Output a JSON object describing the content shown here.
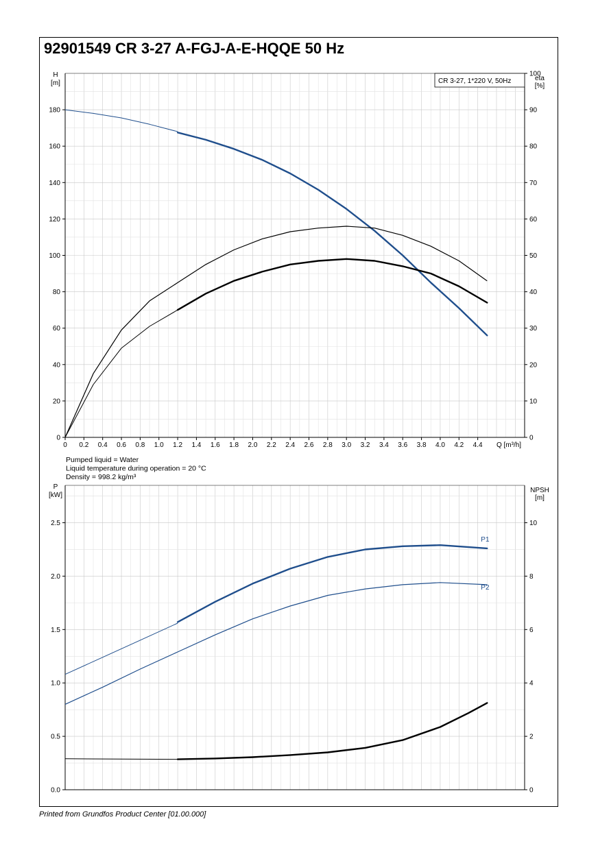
{
  "page": {
    "title": "92901549 CR 3-27 A-FGJ-A-E-HQQE 50 Hz",
    "footer": "Printed from Grundfos Product Center [01.00.000]"
  },
  "colors": {
    "blue": "#1f4e8c",
    "black": "#000000",
    "grid": "#c8c8c8"
  },
  "chart_data": [
    {
      "type": "line",
      "legend_box": "CR 3-27, 1*220 V, 50Hz",
      "xlabel": "Q [m³/h]",
      "ylabel_left": "H",
      "ylabel_left_unit": "[m]",
      "ylabel_right": "eta",
      "ylabel_right_unit": "[%]",
      "x_ticks": [
        "0",
        "0.2",
        "0.4",
        "0.6",
        "0.8",
        "1.0",
        "1.2",
        "1.4",
        "1.6",
        "1.8",
        "2.0",
        "2.2",
        "2.4",
        "2.6",
        "2.8",
        "3.0",
        "3.2",
        "3.4",
        "3.6",
        "3.8",
        "4.0",
        "4.2",
        "4.4"
      ],
      "y_left_ticks": [
        "0",
        "20",
        "40",
        "60",
        "80",
        "100",
        "120",
        "140",
        "160",
        "180"
      ],
      "y_right_ticks": [
        "0",
        "10",
        "20",
        "30",
        "40",
        "50",
        "60",
        "70",
        "80",
        "90",
        "100"
      ],
      "xlim": [
        0,
        4.9
      ],
      "ylim_left": [
        0,
        200
      ],
      "ylim_right": [
        0,
        100
      ],
      "grid": true,
      "series": [
        {
          "id": "H",
          "axis": "left",
          "color": "#1f4e8c",
          "thin_x": [
            0,
            0.3,
            0.6,
            0.9,
            1.2
          ],
          "thin_y": [
            180,
            178,
            175.5,
            172,
            168
          ],
          "bold_x": [
            1.2,
            1.5,
            1.8,
            2.1,
            2.4,
            2.7,
            3.0,
            3.3,
            3.6,
            3.9,
            4.2,
            4.5
          ],
          "bold_y": [
            167.5,
            163.5,
            158.5,
            152.5,
            145,
            136,
            125.5,
            113.5,
            100,
            85,
            71,
            56
          ]
        },
        {
          "id": "eta_motor",
          "axis": "right",
          "color": "#000000",
          "x": [
            0,
            0.3,
            0.6,
            0.9,
            1.2,
            1.5,
            1.8,
            2.1,
            2.4,
            2.7,
            3.0,
            3.3,
            3.6,
            3.9,
            4.2,
            4.5
          ],
          "y": [
            0,
            17.5,
            29.5,
            37.5,
            42.5,
            47.5,
            51.5,
            54.5,
            56.5,
            57.5,
            58,
            57.5,
            55.5,
            52.5,
            48.5,
            43
          ]
        },
        {
          "id": "eta_pump",
          "axis": "right",
          "color": "#000000",
          "thin_x": [
            0,
            0.3,
            0.6,
            0.9,
            1.2
          ],
          "thin_y": [
            0,
            14.5,
            24.5,
            30.5,
            35
          ],
          "bold_x": [
            1.2,
            1.5,
            1.8,
            2.1,
            2.4,
            2.7,
            3.0,
            3.3,
            3.6,
            3.9,
            4.2,
            4.5
          ],
          "bold_y": [
            35,
            39.5,
            43,
            45.5,
            47.5,
            48.5,
            49,
            48.5,
            47,
            45,
            41.5,
            37
          ]
        }
      ],
      "notes": [
        "Pumped liquid = Water",
        "Liquid temperature during operation = 20 °C",
        "Density = 998.2 kg/m³"
      ]
    },
    {
      "type": "line",
      "ylabel_left": "P",
      "ylabel_left_unit": "[kW]",
      "ylabel_right": "NPSH",
      "ylabel_right_unit": "[m]",
      "y_left_ticks": [
        "0.0",
        "0.5",
        "1.0",
        "1.5",
        "2.0",
        "2.5"
      ],
      "y_right_ticks": [
        "0",
        "2",
        "4",
        "6",
        "8",
        "10"
      ],
      "xlim": [
        0,
        4.9
      ],
      "ylim_left": [
        0,
        2.85
      ],
      "ylim_right": [
        0,
        11.4
      ],
      "grid": true,
      "series": [
        {
          "name": "P1",
          "axis": "left",
          "color": "#1f4e8c",
          "thin_x": [
            0,
            0.4,
            0.8,
            1.2
          ],
          "thin_y": [
            1.08,
            1.24,
            1.4,
            1.56
          ],
          "bold_x": [
            1.2,
            1.6,
            2.0,
            2.4,
            2.8,
            3.2,
            3.6,
            4.0,
            4.5
          ],
          "bold_y": [
            1.57,
            1.76,
            1.93,
            2.07,
            2.18,
            2.25,
            2.28,
            2.29,
            2.26
          ]
        },
        {
          "name": "P2",
          "axis": "left",
          "color": "#1f4e8c",
          "x": [
            0,
            0.4,
            0.8,
            1.2,
            1.6,
            2.0,
            2.4,
            2.8,
            3.2,
            3.6,
            4.0,
            4.5
          ],
          "y": [
            0.8,
            0.96,
            1.13,
            1.29,
            1.45,
            1.6,
            1.72,
            1.82,
            1.88,
            1.92,
            1.94,
            1.92
          ]
        },
        {
          "id": "NPSH",
          "axis": "right",
          "color": "#000000",
          "thin_x": [
            0,
            0.6,
            1.2
          ],
          "thin_y": [
            1.16,
            1.15,
            1.14
          ],
          "bold_x": [
            1.2,
            1.6,
            2.0,
            2.4,
            2.8,
            3.2,
            3.6,
            4.0,
            4.3,
            4.5
          ],
          "bold_y": [
            1.14,
            1.17,
            1.22,
            1.3,
            1.4,
            1.57,
            1.86,
            2.35,
            2.87,
            3.25
          ]
        }
      ]
    }
  ]
}
